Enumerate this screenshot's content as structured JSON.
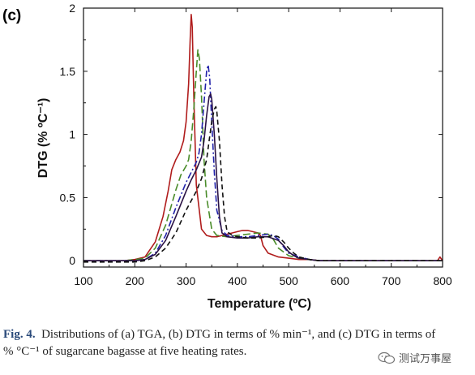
{
  "panel_label": "(c)",
  "caption": {
    "fig_label": "Fig. 4.",
    "text_line1": "Distributions of (a) TGA, (b) DTG in terms of % min⁻¹, and (c) DTG in terms of",
    "text_line2": "% °C⁻¹ of sugarcane bagasse at five heating rates."
  },
  "watermark": {
    "icon": "wechat-icon",
    "text": "测试万事屋"
  },
  "chart_data": {
    "type": "line",
    "title": "",
    "xlabel": "Temperature (ºC)",
    "ylabel": "DTG (% ºC⁻¹)",
    "xlim": [
      100,
      800
    ],
    "ylim": [
      -0.05,
      2.0
    ],
    "xticks": [
      100,
      200,
      300,
      400,
      500,
      600,
      700,
      800
    ],
    "yticks": [
      0,
      0.5,
      1,
      1.5,
      2
    ],
    "ytick_labels": [
      "0",
      "0.5",
      "1",
      "1.5",
      "2"
    ],
    "grid": false,
    "series": [
      {
        "color": "#b01c1c",
        "dash": "solid",
        "x": [
          100,
          150,
          180,
          200,
          220,
          240,
          255,
          265,
          272,
          280,
          288,
          295,
          300,
          305,
          308,
          310,
          312,
          315,
          320,
          330,
          340,
          350,
          360,
          370,
          380,
          390,
          400,
          410,
          420,
          430,
          440,
          445,
          450,
          460,
          480,
          500,
          520,
          540,
          560,
          600,
          700,
          790,
          795,
          800
        ],
        "y": [
          0.0,
          0.0,
          0.0,
          0.01,
          0.03,
          0.15,
          0.35,
          0.55,
          0.72,
          0.8,
          0.86,
          0.95,
          1.1,
          1.4,
          1.75,
          1.95,
          1.85,
          1.3,
          0.6,
          0.25,
          0.2,
          0.19,
          0.19,
          0.2,
          0.21,
          0.22,
          0.23,
          0.24,
          0.24,
          0.23,
          0.22,
          0.2,
          0.12,
          0.06,
          0.03,
          0.02,
          0.01,
          0.01,
          0.0,
          0.0,
          0.0,
          0.0,
          0.03,
          0.0
        ]
      },
      {
        "color": "#4a8c2a",
        "dash": "longdash",
        "x": [
          100,
          150,
          180,
          200,
          220,
          240,
          260,
          270,
          280,
          290,
          300,
          305,
          310,
          315,
          320,
          323,
          326,
          330,
          335,
          340,
          350,
          360,
          380,
          400,
          420,
          440,
          460,
          470,
          480,
          500,
          520,
          540,
          560,
          600,
          700,
          800
        ],
        "y": [
          0.0,
          0.0,
          0.0,
          0.01,
          0.02,
          0.1,
          0.28,
          0.42,
          0.56,
          0.68,
          0.75,
          0.8,
          0.95,
          1.2,
          1.5,
          1.67,
          1.6,
          1.3,
          0.8,
          0.5,
          0.25,
          0.2,
          0.19,
          0.2,
          0.21,
          0.22,
          0.21,
          0.17,
          0.1,
          0.04,
          0.02,
          0.01,
          0.0,
          0.0,
          0.0,
          0.0
        ]
      },
      {
        "color": "#2222aa",
        "dash": "dashdot",
        "x": [
          100,
          150,
          200,
          220,
          240,
          260,
          280,
          300,
          310,
          320,
          325,
          330,
          335,
          340,
          343,
          346,
          350,
          355,
          360,
          370,
          380,
          400,
          420,
          440,
          460,
          470,
          480,
          490,
          500,
          520,
          540,
          560,
          600,
          700,
          800
        ],
        "y": [
          0.0,
          0.0,
          0.0,
          0.01,
          0.06,
          0.2,
          0.42,
          0.62,
          0.7,
          0.78,
          0.85,
          1.0,
          1.25,
          1.5,
          1.55,
          1.45,
          1.1,
          0.7,
          0.4,
          0.24,
          0.2,
          0.19,
          0.19,
          0.2,
          0.21,
          0.2,
          0.17,
          0.11,
          0.06,
          0.03,
          0.01,
          0.0,
          0.0,
          0.0,
          0.0
        ]
      },
      {
        "color": "#2a1244",
        "dash": "solid",
        "x": [
          100,
          150,
          200,
          220,
          240,
          260,
          280,
          300,
          310,
          320,
          330,
          335,
          340,
          345,
          348,
          350,
          355,
          360,
          365,
          370,
          380,
          400,
          420,
          440,
          460,
          480,
          490,
          500,
          510,
          520,
          540,
          560,
          600,
          700,
          800
        ],
        "y": [
          0.0,
          0.0,
          0.0,
          0.01,
          0.05,
          0.16,
          0.35,
          0.55,
          0.64,
          0.72,
          0.82,
          0.95,
          1.15,
          1.3,
          1.32,
          1.28,
          1.0,
          0.65,
          0.35,
          0.22,
          0.19,
          0.18,
          0.18,
          0.19,
          0.19,
          0.16,
          0.12,
          0.07,
          0.04,
          0.02,
          0.01,
          0.0,
          0.0,
          0.0,
          0.0
        ]
      },
      {
        "color": "#111111",
        "dash": "dash",
        "x": [
          100,
          150,
          200,
          220,
          240,
          260,
          280,
          300,
          320,
          330,
          340,
          345,
          350,
          355,
          358,
          360,
          365,
          370,
          375,
          380,
          390,
          400,
          420,
          440,
          460,
          470,
          480,
          490,
          500,
          510,
          520,
          530,
          540,
          560,
          600,
          700,
          800
        ],
        "y": [
          -0.01,
          -0.01,
          -0.01,
          0.0,
          0.03,
          0.1,
          0.22,
          0.4,
          0.55,
          0.65,
          0.8,
          0.95,
          1.1,
          1.2,
          1.22,
          1.18,
          0.95,
          0.6,
          0.35,
          0.23,
          0.2,
          0.19,
          0.18,
          0.18,
          0.19,
          0.2,
          0.19,
          0.15,
          0.1,
          0.06,
          0.03,
          0.02,
          0.01,
          0.0,
          0.0,
          0.0,
          0.0
        ]
      }
    ]
  }
}
